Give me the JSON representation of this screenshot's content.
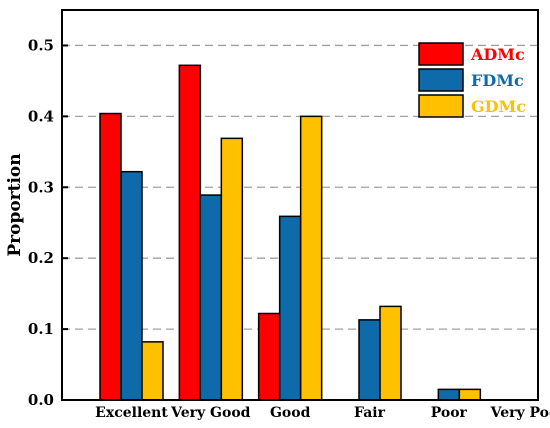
{
  "chart_data": {
    "type": "bar",
    "categories": [
      "Excellent",
      "Very Good",
      "Good",
      "Fair",
      "Poor",
      "Very Poor"
    ],
    "series": [
      {
        "name": "ADMc",
        "color": "#ff0000",
        "values": [
          0.404,
          0.472,
          0.122,
          0.0,
          0.0,
          0.0
        ]
      },
      {
        "name": "FDMc",
        "color": "#0e6aa8",
        "values": [
          0.322,
          0.289,
          0.259,
          0.113,
          0.015,
          0.0
        ]
      },
      {
        "name": "GDMc",
        "color": "#ffc000",
        "values": [
          0.082,
          0.369,
          0.4,
          0.132,
          0.015,
          0.0
        ]
      }
    ],
    "xlabel": "",
    "ylabel": "Proportion",
    "ylim": [
      0.0,
      0.55
    ],
    "yticks": [
      "0.0",
      "0.1",
      "0.2",
      "0.3",
      "0.4",
      "0.5"
    ],
    "grid": "horizontal dashed",
    "legend_position": "top-right"
  }
}
